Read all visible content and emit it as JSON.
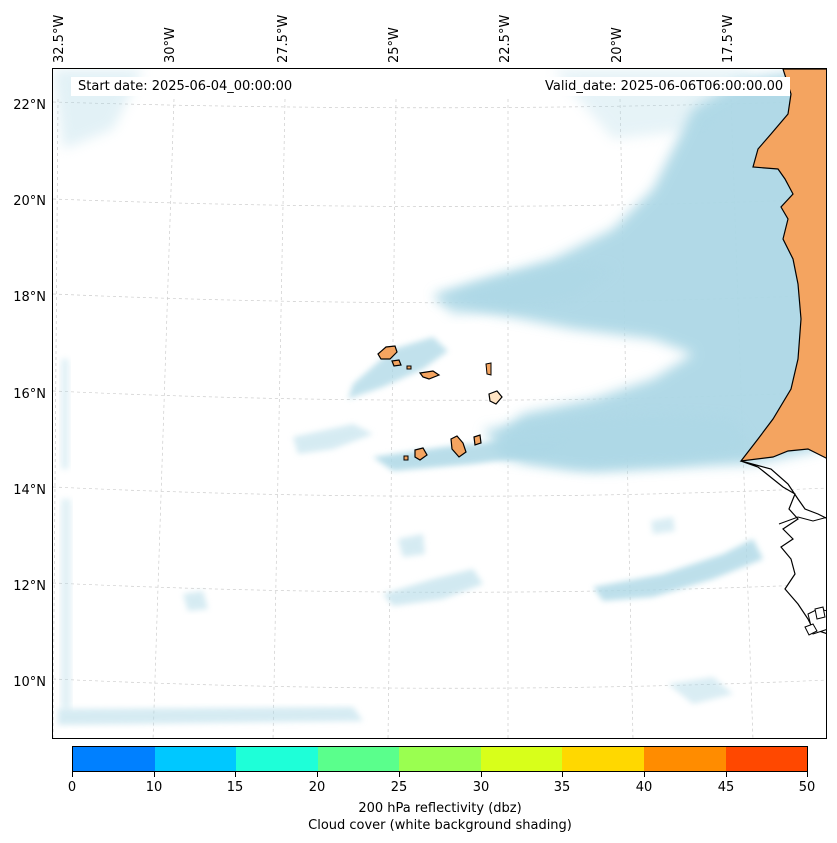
{
  "header": {
    "start_date": "Start date: 2025-06-04_00:00:00",
    "valid_date": "Valid_date: 2025-06-06T06:00:00.00"
  },
  "axes": {
    "lon_labels": [
      "32.5°W",
      "30°W",
      "27.5°W",
      "25°W",
      "22.5°W",
      "20°W",
      "17.5°W"
    ],
    "lat_labels": [
      "22°N",
      "20°N",
      "18°N",
      "16°N",
      "14°N",
      "12°N",
      "10°N"
    ]
  },
  "colorbar": {
    "ticks": [
      "0",
      "10",
      "15",
      "20",
      "25",
      "30",
      "35",
      "40",
      "45",
      "50"
    ],
    "colors": [
      "#0080ff",
      "#00c8ff",
      "#1effd8",
      "#5aff8c",
      "#9aff50",
      "#d8ff1a",
      "#ffd800",
      "#ff8c00",
      "#ff4800"
    ],
    "label_line1": "200 hPa reflectivity (dbz)",
    "label_line2": "Cloud cover (white background shading)"
  },
  "map": {
    "land_color": "#f4a460",
    "cloud_color": "#add8e6",
    "coastline_color": "#000000"
  }
}
